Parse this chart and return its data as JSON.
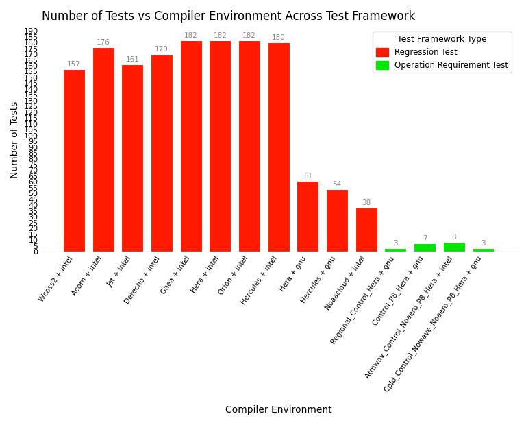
{
  "title": "Number of Tests vs Compiler Environment Across Test Framework",
  "xlabel": "Compiler Environment",
  "ylabel": "Number of Tests",
  "categories": [
    "Wcoss2 + intel",
    "Acorn + intel",
    "Jet + intel",
    "Derecho + intel",
    "Gaea + intel",
    "Hera + intel",
    "Orion + intel",
    "Hercules + intel",
    "Hera + gnu",
    "Hercules + gnu",
    "Noaacloud + intel",
    "Regional_Control_Hera + gnu",
    "Control_P8_Hera + gnu",
    "Atmwav_Control_Noaero_P8_Hera + intel",
    "Cpld_Control_Nowave_Noaero_P8_Hera + gnu"
  ],
  "values": [
    157,
    176,
    161,
    170,
    182,
    182,
    182,
    180,
    61,
    54,
    38,
    3,
    7,
    8,
    3
  ],
  "colors": [
    "#ff1a00",
    "#ff1a00",
    "#ff1a00",
    "#ff1a00",
    "#ff1a00",
    "#ff1a00",
    "#ff1a00",
    "#ff1a00",
    "#ff1a00",
    "#ff1a00",
    "#ff1a00",
    "#00e600",
    "#00e600",
    "#00e600",
    "#00e600"
  ],
  "background_color": "#ffffff",
  "plot_background": "#ffffff",
  "yticks": [
    0,
    5,
    10,
    15,
    20,
    25,
    30,
    35,
    40,
    45,
    50,
    55,
    60,
    65,
    70,
    75,
    80,
    85,
    90,
    95,
    100,
    105,
    110,
    115,
    120,
    125,
    130,
    135,
    140,
    145,
    150,
    155,
    160,
    165,
    170,
    175,
    180,
    185,
    190
  ],
  "legend_labels": [
    "Regression Test",
    "Operation Requirement Test"
  ],
  "legend_colors": [
    "#ff1a00",
    "#00e600"
  ],
  "title_fontsize": 12,
  "label_fontsize": 10,
  "tick_fontsize": 8,
  "bar_label_color": "#888888",
  "bar_label_fontsize": 7.5,
  "ylim": [
    0,
    193
  ]
}
